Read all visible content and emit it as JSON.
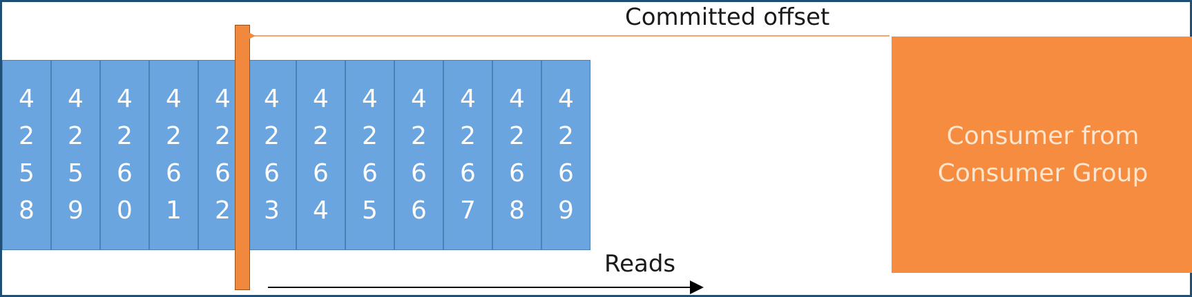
{
  "labels": {
    "committed_offset": "Committed offset",
    "reads": "Reads",
    "consumer_line1": "Consumer from",
    "consumer_line2": "Consumer Group"
  },
  "log": {
    "offsets": [
      "4258",
      "4259",
      "4260",
      "4261",
      "4262",
      "4263",
      "4264",
      "4265",
      "4266",
      "4267",
      "4268",
      "4269"
    ],
    "committed_after_index": 4
  },
  "colors": {
    "cell_fill": "#6aa5e0",
    "consumer_fill": "#f58c3f",
    "marker_fill": "#f0883e",
    "frame": "#1f4e79"
  }
}
